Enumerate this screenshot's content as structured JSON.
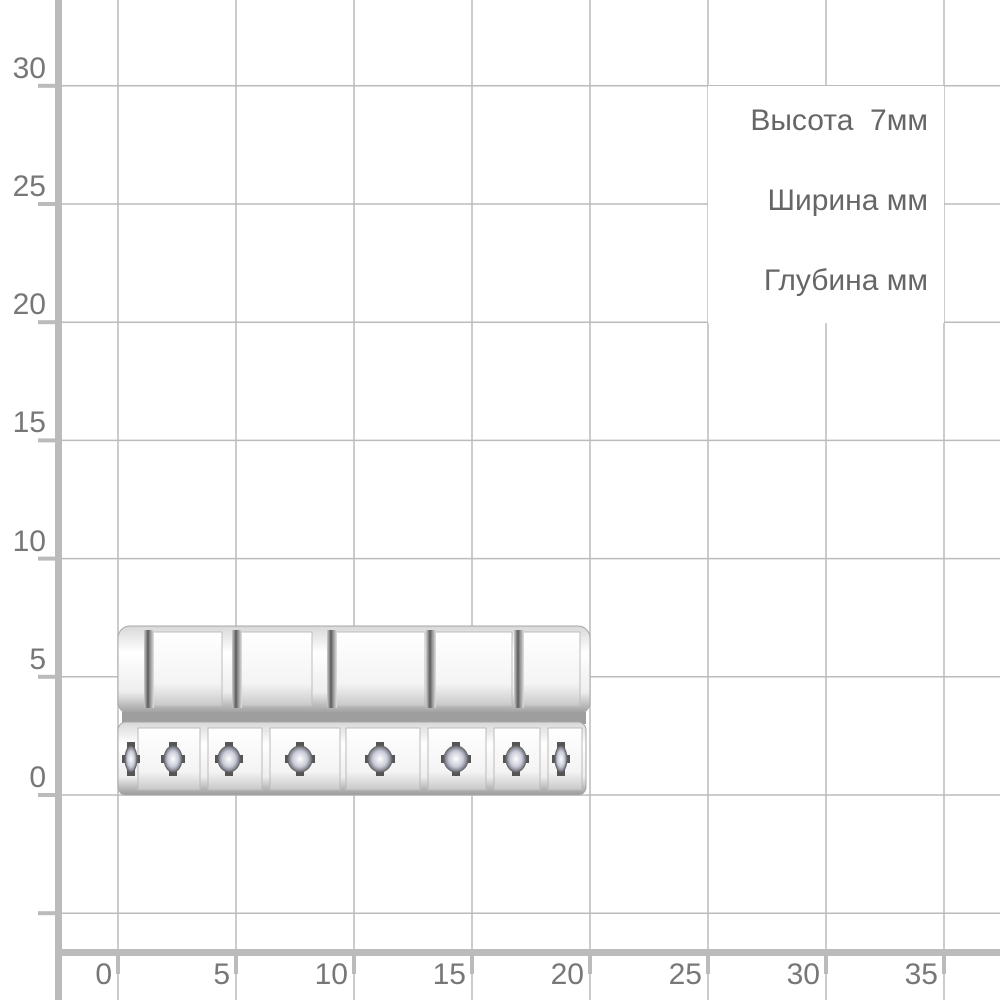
{
  "axes": {
    "x_ticks": [
      "0",
      "5",
      "10",
      "15",
      "20",
      "25",
      "30",
      "35"
    ],
    "y_ticks": [
      "30",
      "25",
      "20",
      "15",
      "10",
      "5",
      "0"
    ],
    "unit": "mm",
    "grid_step": 5,
    "color": "#bbbbbb",
    "label_color": "#777777"
  },
  "dimensions": {
    "height_label": "Высота  7мм",
    "width_label": "Ширина мм",
    "depth_label": "Глубина мм"
  },
  "product": {
    "type": "ring-image",
    "width_mm": 20,
    "height_mm": 7,
    "stones_visible": 8
  }
}
